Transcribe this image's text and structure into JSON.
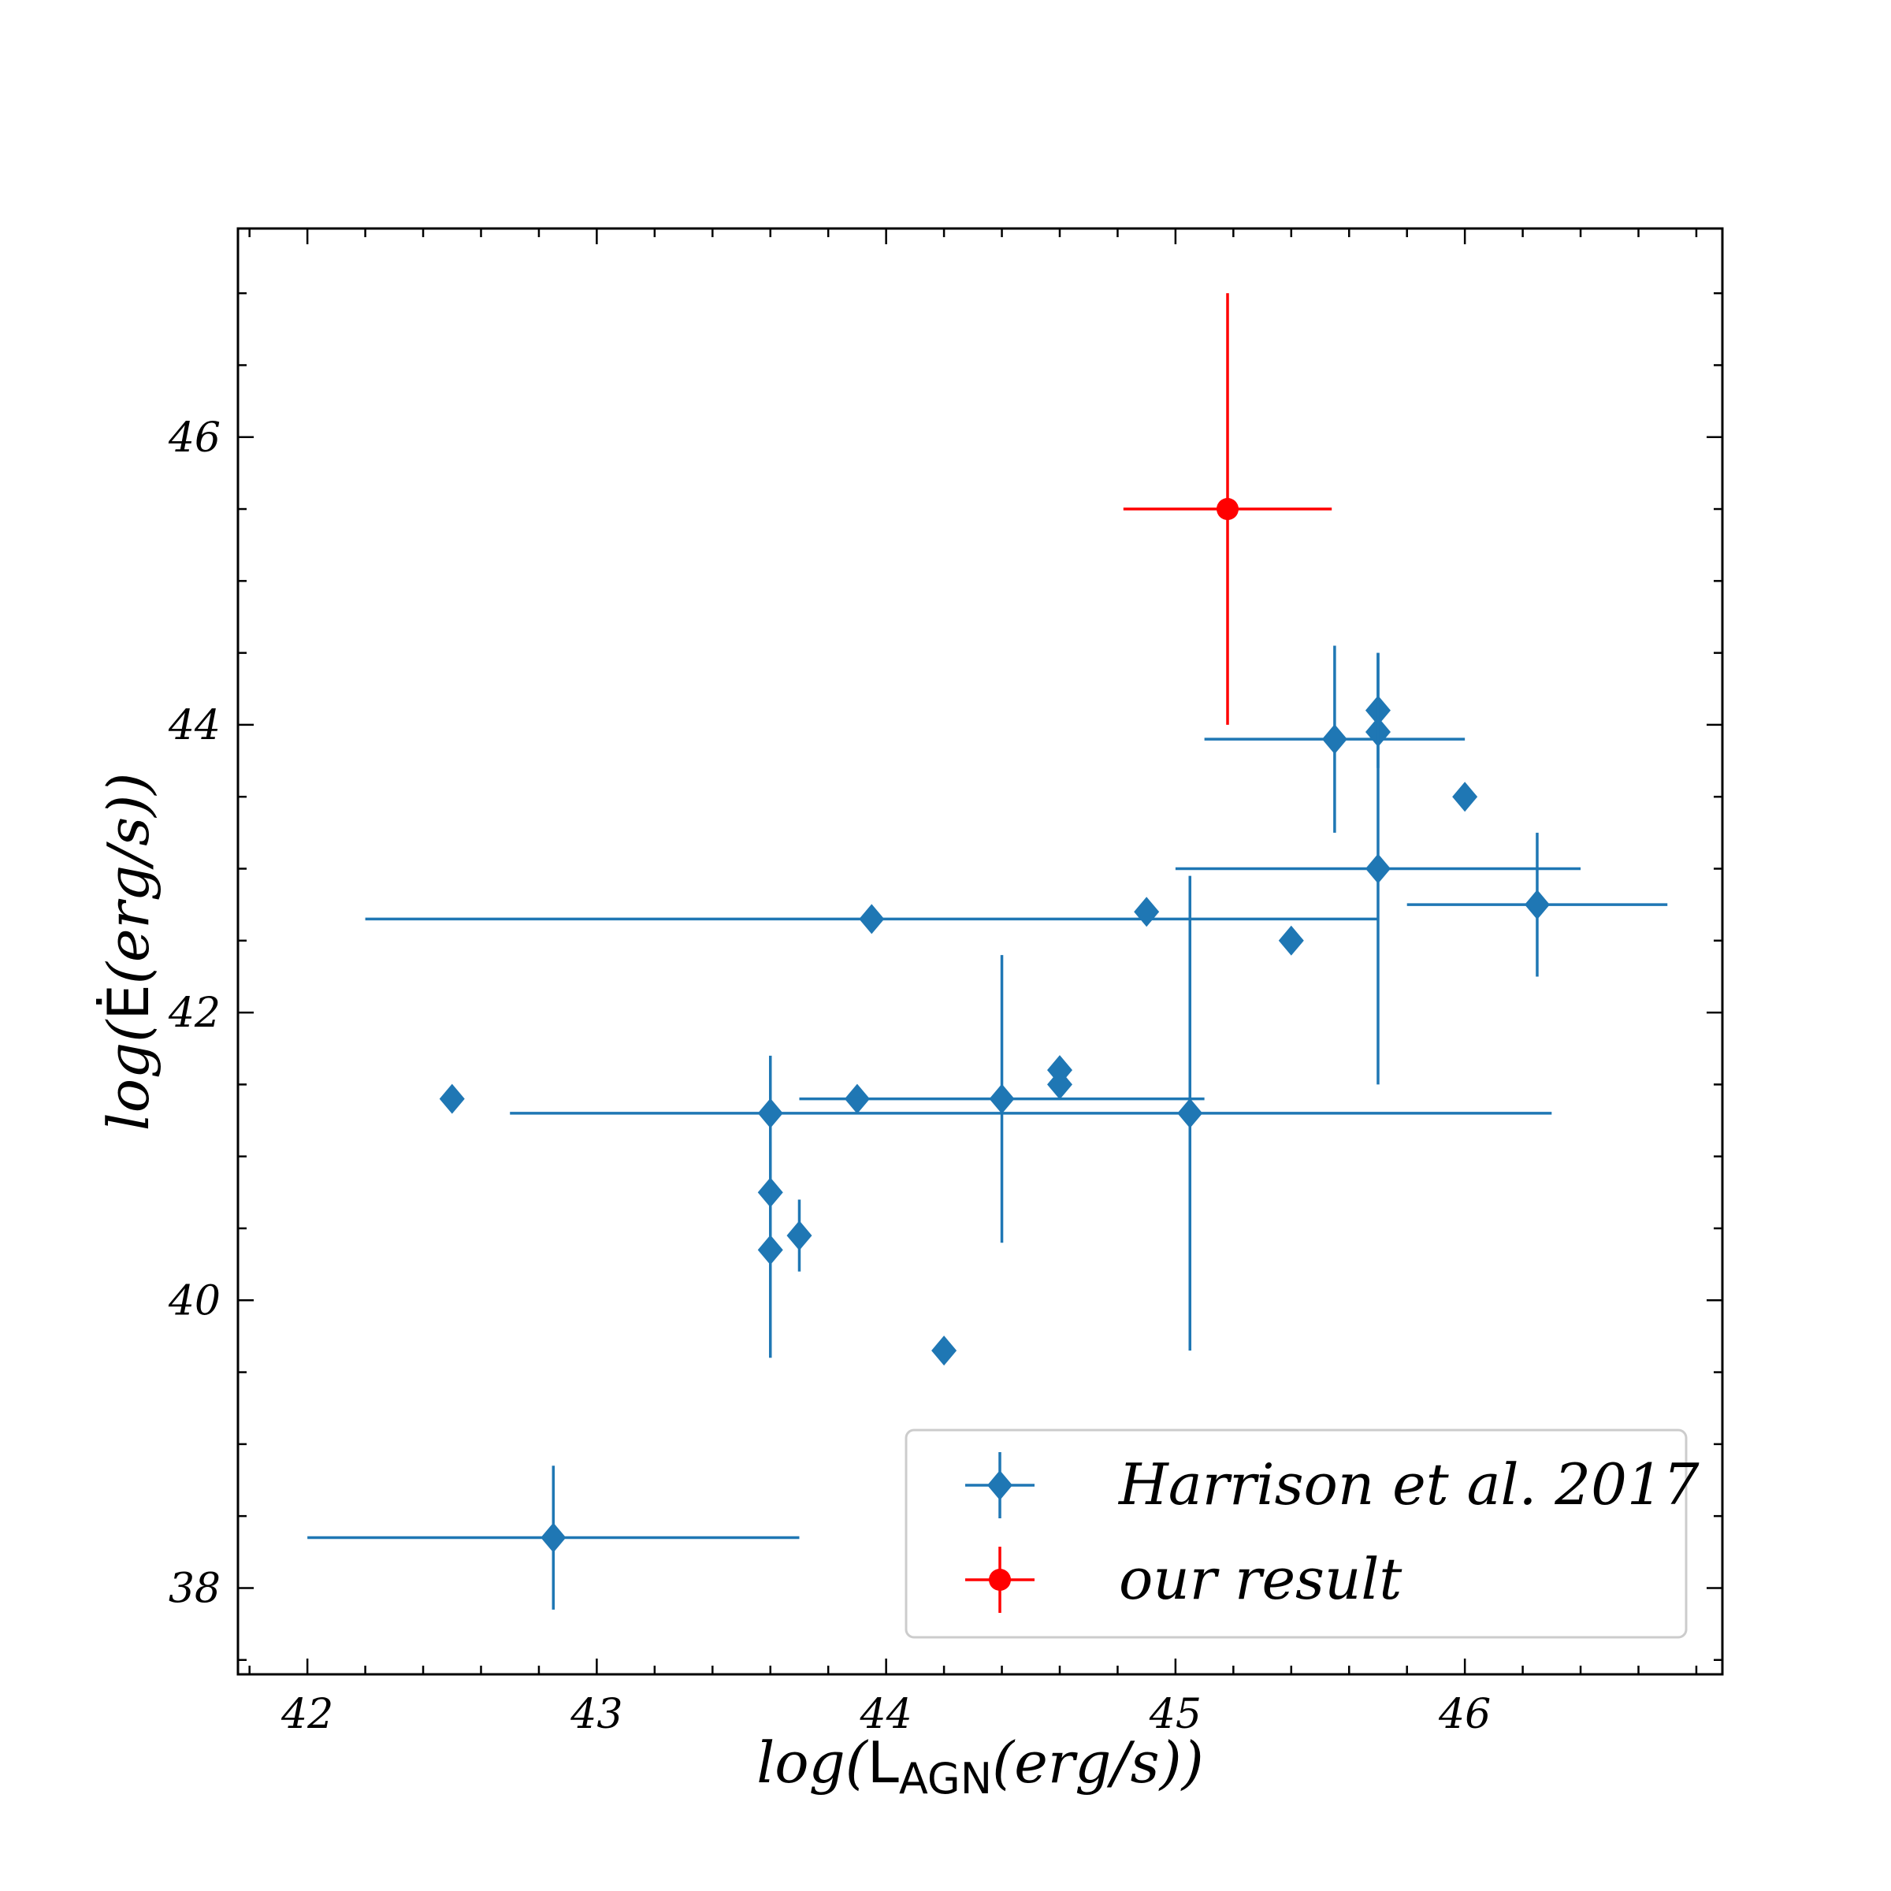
{
  "chart_data": {
    "type": "scatter",
    "xlabel": {
      "prefix": "log(",
      "main": "L",
      "sub": "AGN",
      "suffix": "(erg/s))"
    },
    "ylabel": {
      "prefix": "log(",
      "main": "Ė",
      "suffix": "(erg/s))"
    },
    "xlim": [
      41.76,
      46.89
    ],
    "ylim": [
      37.4,
      47.45
    ],
    "xticks": [
      42,
      43,
      44,
      45,
      46
    ],
    "yticks": [
      38,
      40,
      42,
      44,
      46
    ],
    "xtick_labels": [
      "42",
      "43",
      "44",
      "45",
      "46"
    ],
    "ytick_labels": [
      "38",
      "40",
      "42",
      "44",
      "46"
    ],
    "legend_position": "lower-right",
    "series": [
      {
        "name": "Harrison et al. 2017",
        "color": "#1f77b4",
        "marker": "diamond",
        "points": [
          {
            "x": 42.85,
            "y": 38.35,
            "xerr": [
              0.85,
              0.85
            ],
            "yerr": [
              0.5,
              0.5
            ]
          },
          {
            "x": 42.5,
            "y": 41.4,
            "xerr": null,
            "yerr": null
          },
          {
            "x": 43.6,
            "y": 41.3,
            "xerr": [
              0.9,
              2.7
            ],
            "yerr": [
              0.4,
              0.4
            ]
          },
          {
            "x": 43.6,
            "y": 40.75,
            "xerr": null,
            "yerr": null
          },
          {
            "x": 43.6,
            "y": 40.35,
            "xerr": null,
            "yerr": [
              0.75,
              0.75
            ]
          },
          {
            "x": 43.7,
            "y": 40.45,
            "xerr": null,
            "yerr": [
              0.25,
              0.25
            ]
          },
          {
            "x": 43.9,
            "y": 41.4,
            "xerr": null,
            "yerr": null
          },
          {
            "x": 43.95,
            "y": 42.65,
            "xerr": [
              1.75,
              1.75
            ],
            "yerr": null
          },
          {
            "x": 44.2,
            "y": 39.65,
            "xerr": null,
            "yerr": null
          },
          {
            "x": 44.4,
            "y": 41.4,
            "xerr": [
              0.7,
              0.7
            ],
            "yerr": [
              1.0,
              1.0
            ]
          },
          {
            "x": 44.6,
            "y": 41.6,
            "xerr": null,
            "yerr": null
          },
          {
            "x": 44.6,
            "y": 41.5,
            "xerr": null,
            "yerr": null
          },
          {
            "x": 44.9,
            "y": 42.7,
            "xerr": null,
            "yerr": null
          },
          {
            "x": 45.05,
            "y": 41.3,
            "xerr": null,
            "yerr": [
              1.65,
              1.65
            ]
          },
          {
            "x": 45.4,
            "y": 42.5,
            "xerr": null,
            "yerr": null
          },
          {
            "x": 45.55,
            "y": 43.9,
            "xerr": [
              0.45,
              0.45
            ],
            "yerr": [
              0.65,
              0.65
            ]
          },
          {
            "x": 45.7,
            "y": 44.1,
            "xerr": null,
            "yerr": [
              0.4,
              0.4
            ]
          },
          {
            "x": 45.7,
            "y": 43.95,
            "xerr": null,
            "yerr": null
          },
          {
            "x": 45.7,
            "y": 43.0,
            "xerr": [
              0.7,
              0.7
            ],
            "yerr": [
              1.5,
              1.5
            ]
          },
          {
            "x": 46.0,
            "y": 43.5,
            "xerr": null,
            "yerr": null
          },
          {
            "x": 46.25,
            "y": 42.75,
            "xerr": [
              0.45,
              0.45
            ],
            "yerr": [
              0.5,
              0.5
            ]
          }
        ]
      },
      {
        "name": "our result",
        "color": "#ff0000",
        "marker": "circle",
        "points": [
          {
            "x": 45.18,
            "y": 45.5,
            "xerr": [
              0.36,
              0.36
            ],
            "yerr": [
              1.5,
              1.5
            ]
          }
        ]
      }
    ]
  }
}
